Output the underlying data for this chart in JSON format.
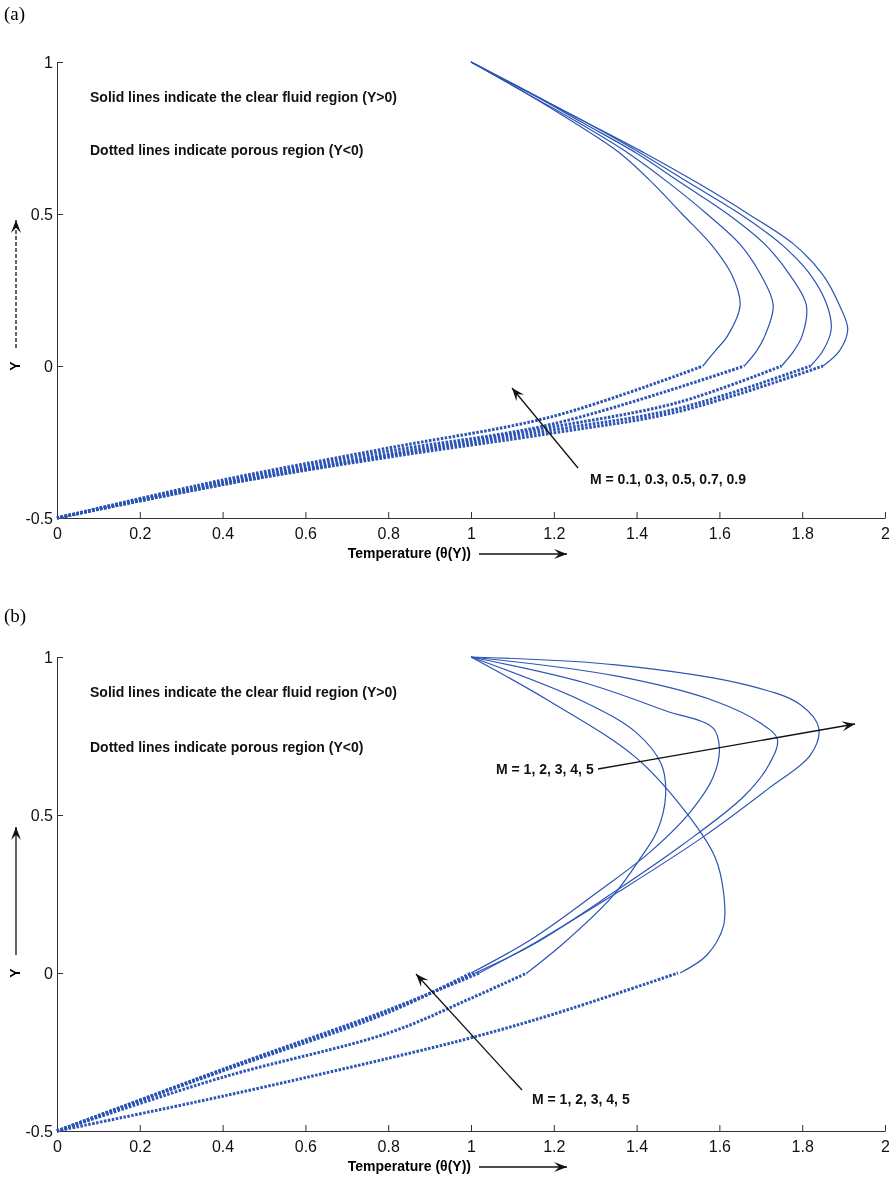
{
  "chart_data": [
    {
      "type": "line",
      "title": "(a)",
      "xlabel": "Temperature (θ(Y))",
      "ylabel": "Y",
      "xlim": [
        0,
        2
      ],
      "ylim": [
        -0.5,
        1
      ],
      "xticks": [
        0,
        0.2,
        0.4,
        0.6,
        0.8,
        1,
        1.2,
        1.4,
        1.6,
        1.8,
        2
      ],
      "yticks": [
        -0.5,
        0,
        0.5,
        1
      ],
      "annotations": [
        "Solid lines indicate the clear fluid region (Y>0)",
        "Dotted lines indicate porous region (Y<0)",
        "M = 0.1, 0.3, 0.5, 0.7, 0.9"
      ],
      "series": [
        {
          "color": "#2b54b5",
          "line_style": "solid",
          "x": [
            1,
            1.13,
            1.25,
            1.36,
            1.44,
            1.51,
            1.58,
            1.63,
            1.65,
            1.62,
            1.59,
            1.56
          ],
          "values": [
            1,
            0.9,
            0.8,
            0.7,
            0.6,
            0.5,
            0.4,
            0.3,
            0.2,
            0.1,
            0.05,
            0
          ]
        },
        {
          "color": "#2b54b5",
          "line_style": "solid",
          "x": [
            1,
            1.13,
            1.26,
            1.38,
            1.48,
            1.57,
            1.65,
            1.7,
            1.73,
            1.71,
            1.69,
            1.66
          ],
          "values": [
            1,
            0.9,
            0.8,
            0.7,
            0.6,
            0.5,
            0.4,
            0.3,
            0.2,
            0.1,
            0.05,
            0
          ]
        },
        {
          "color": "#2b54b5",
          "line_style": "solid",
          "x": [
            1,
            1.14,
            1.27,
            1.4,
            1.51,
            1.62,
            1.71,
            1.77,
            1.81,
            1.8,
            1.78,
            1.75
          ],
          "values": [
            1,
            0.9,
            0.8,
            0.7,
            0.6,
            0.5,
            0.4,
            0.3,
            0.2,
            0.1,
            0.05,
            0
          ]
        },
        {
          "color": "#2b54b5",
          "line_style": "solid",
          "x": [
            1,
            1.14,
            1.28,
            1.41,
            1.53,
            1.65,
            1.75,
            1.82,
            1.86,
            1.87,
            1.85,
            1.82
          ],
          "values": [
            1,
            0.9,
            0.8,
            0.7,
            0.6,
            0.5,
            0.4,
            0.3,
            0.2,
            0.12,
            0.05,
            0
          ]
        },
        {
          "color": "#2b54b5",
          "line_style": "solid",
          "x": [
            1,
            1.14,
            1.28,
            1.42,
            1.55,
            1.67,
            1.78,
            1.85,
            1.89,
            1.91,
            1.89,
            1.85
          ],
          "values": [
            1,
            0.9,
            0.8,
            0.7,
            0.6,
            0.5,
            0.4,
            0.3,
            0.2,
            0.12,
            0.05,
            0
          ]
        },
        {
          "color": "#2b54b5",
          "line_style": "dotted",
          "x": [
            0,
            0.4,
            0.8,
            1.2,
            1.56
          ],
          "values": [
            -0.5,
            -0.375,
            -0.27,
            -0.165,
            0
          ]
        },
        {
          "color": "#2b54b5",
          "line_style": "dotted",
          "x": [
            0,
            0.4,
            0.8,
            1.2,
            1.66
          ],
          "values": [
            -0.5,
            -0.38,
            -0.28,
            -0.19,
            0
          ]
        },
        {
          "color": "#2b54b5",
          "line_style": "dotted",
          "x": [
            0,
            0.4,
            0.8,
            1.2,
            1.5,
            1.75
          ],
          "values": [
            -0.5,
            -0.385,
            -0.29,
            -0.2,
            -0.12,
            0
          ]
        },
        {
          "color": "#2b54b5",
          "line_style": "dotted",
          "x": [
            0,
            0.4,
            0.8,
            1.2,
            1.5,
            1.82
          ],
          "values": [
            -0.5,
            -0.39,
            -0.295,
            -0.21,
            -0.14,
            0
          ]
        },
        {
          "color": "#2b54b5",
          "line_style": "dotted",
          "x": [
            0,
            0.4,
            0.8,
            1.2,
            1.5,
            1.85
          ],
          "values": [
            -0.5,
            -0.39,
            -0.3,
            -0.22,
            -0.15,
            0
          ]
        }
      ]
    },
    {
      "type": "line",
      "title": "(b)",
      "xlabel": "Temperature (θ(Y))",
      "ylabel": "Y",
      "xlim": [
        0,
        2
      ],
      "ylim": [
        -0.5,
        1
      ],
      "xticks": [
        0,
        0.2,
        0.4,
        0.6,
        0.8,
        1,
        1.2,
        1.4,
        1.6,
        1.8,
        2
      ],
      "yticks": [
        -0.5,
        0,
        0.5,
        1
      ],
      "annotations": [
        "Solid lines indicate the clear fluid region (Y>0)",
        "Dotted lines indicate porous region (Y<0)",
        "M = 1, 2, 3, 4, 5",
        "M = 1, 2, 3, 4, 5"
      ],
      "series": [
        {
          "color": "#2b54b5",
          "line_style": "solid",
          "x": [
            1,
            1.19,
            1.4,
            1.53,
            1.59,
            1.61,
            1.61,
            1.57,
            1.505
          ],
          "values": [
            1,
            0.86,
            0.68,
            0.49,
            0.365,
            0.256,
            0.15,
            0.057,
            0
          ]
        },
        {
          "color": "#2b54b5",
          "line_style": "solid",
          "x": [
            1,
            1.27,
            1.4,
            1.46,
            1.47,
            1.45,
            1.41,
            1.34,
            1.22,
            1.135
          ],
          "values": [
            1,
            0.86,
            0.76,
            0.66,
            0.56,
            0.45,
            0.365,
            0.24,
            0.09,
            0
          ]
        },
        {
          "color": "#2b54b5",
          "line_style": "solid",
          "x": [
            1,
            1.27,
            1.47,
            1.585,
            1.6,
            1.585,
            1.53,
            1.43,
            1.31,
            1.15,
            1
          ],
          "values": [
            1,
            0.92,
            0.83,
            0.775,
            0.71,
            0.62,
            0.51,
            0.38,
            0.26,
            0.11,
            0
          ]
        },
        {
          "color": "#2b54b5",
          "line_style": "solid",
          "x": [
            1,
            1.35,
            1.59,
            1.7,
            1.74,
            1.72,
            1.66,
            1.51,
            1.35,
            1.15,
            1.01
          ],
          "values": [
            1,
            0.94,
            0.86,
            0.79,
            0.74,
            0.66,
            0.56,
            0.405,
            0.26,
            0.09,
            0
          ]
        },
        {
          "color": "#2b54b5",
          "line_style": "solid",
          "x": [
            1,
            1.35,
            1.67,
            1.795,
            1.84,
            1.82,
            1.72,
            1.56,
            1.36,
            1.16,
            1.02
          ],
          "values": [
            1,
            0.975,
            0.91,
            0.85,
            0.775,
            0.69,
            0.585,
            0.43,
            0.26,
            0.1,
            0
          ]
        },
        {
          "color": "#2b54b5",
          "line_style": "dotted",
          "x": [
            0,
            0.4,
            0.8,
            1,
            1.2,
            1.5
          ],
          "values": [
            -0.5,
            -0.39,
            -0.27,
            -0.205,
            -0.13,
            0
          ]
        },
        {
          "color": "#2b54b5",
          "line_style": "dotted",
          "x": [
            0,
            0.4,
            0.8,
            1,
            1.135
          ],
          "values": [
            -0.5,
            -0.33,
            -0.19,
            -0.08,
            0
          ]
        },
        {
          "color": "#2b54b5",
          "line_style": "dotted",
          "x": [
            0,
            0.4,
            0.8,
            1
          ],
          "values": [
            -0.5,
            -0.31,
            -0.125,
            0
          ]
        },
        {
          "color": "#2b54b5",
          "line_style": "dotted",
          "x": [
            0,
            0.4,
            0.8,
            1.01
          ],
          "values": [
            -0.5,
            -0.307,
            -0.12,
            0
          ]
        },
        {
          "color": "#2b54b5",
          "line_style": "dotted",
          "x": [
            0,
            0.4,
            0.8,
            1.02
          ],
          "values": [
            -0.5,
            -0.305,
            -0.117,
            0
          ]
        }
      ]
    }
  ]
}
